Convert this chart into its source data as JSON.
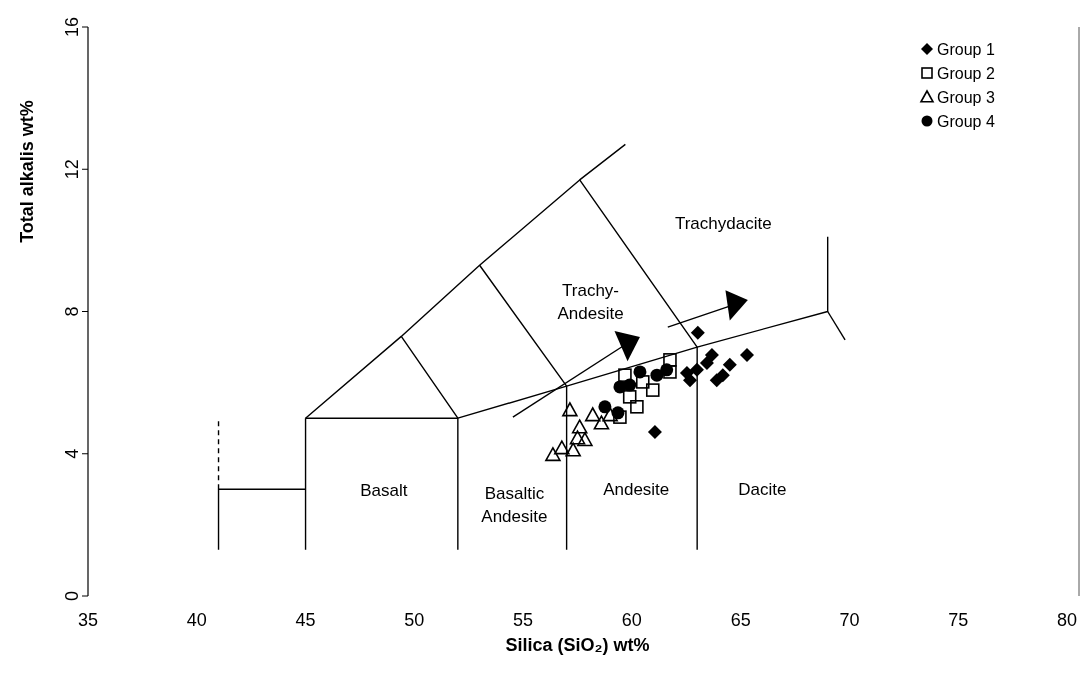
{
  "chart_data": {
    "type": "scatter",
    "xlabel": "Silica (SiO₂) wt%",
    "ylabel": "Total alkalis wt%",
    "xlim": [
      35,
      80
    ],
    "xticks": [
      35,
      40,
      45,
      50,
      55,
      60,
      65,
      70,
      75,
      80
    ],
    "ylim": [
      0,
      16
    ],
    "yticks": [
      0,
      4,
      8,
      12,
      16
    ],
    "grid": false,
    "legend": "top right",
    "series": [
      {
        "name": "Group 1",
        "color": "#000000",
        "marker": "diamond",
        "x": [
          63.03,
          61.06,
          63.68,
          65.29,
          64.5,
          62.67,
          63.9,
          63.45,
          62.53,
          64.18,
          62.99
        ],
        "values": [
          7.4,
          4.61,
          6.78,
          6.78,
          6.5,
          6.07,
          6.07,
          6.55,
          6.27,
          6.21,
          6.36
        ]
      },
      {
        "name": "Group 2",
        "color": "#000000",
        "marker": "square",
        "x": [
          59.68,
          61.75,
          61.75,
          60.96,
          60.23,
          59.45,
          60.5,
          59.9
        ],
        "values": [
          6.21,
          6.64,
          6.3,
          5.79,
          5.32,
          5.03,
          6.02,
          5.6
        ]
      },
      {
        "name": "Group 3",
        "color": "#000000",
        "marker": "triangle",
        "x": [
          57.15,
          56.37,
          56.78,
          57.3,
          57.6,
          57.84,
          58.2,
          58.6,
          57.5,
          59.0
        ],
        "values": [
          5.23,
          3.97,
          4.16,
          4.1,
          4.75,
          4.39,
          5.09,
          4.86,
          4.44,
          5.09
        ]
      },
      {
        "name": "Group 4",
        "color": "#000000",
        "marker": "circle",
        "x": [
          59.45,
          58.76,
          60.37,
          61.15,
          61.6,
          59.36,
          59.9
        ],
        "values": [
          5.88,
          5.32,
          6.3,
          6.21,
          6.36,
          5.15,
          5.93
        ]
      },
      {
        "type": "line",
        "color": "#000000",
        "marker": "none",
        "line_style": "solid",
        "x": [
          45,
          49.4,
          53,
          57.6,
          59.7
        ],
        "values": [
          5,
          7.3,
          9.3,
          11.7,
          12.7
        ]
      },
      {
        "type": "line",
        "color": "#000000",
        "marker": "none",
        "line_style": "solid",
        "x": [
          45,
          52,
          57,
          63,
          69,
          69
        ],
        "values": [
          5,
          5,
          5.9,
          7,
          8,
          10.1
        ]
      },
      {
        "type": "line",
        "color": "#000000",
        "marker": "none",
        "line_style": "solid",
        "x": [
          69,
          69.8
        ],
        "values": [
          8,
          7.2
        ]
      },
      {
        "type": "line",
        "color": "#000000",
        "marker": "none",
        "line_style": "solid",
        "x": [
          49.4,
          52,
          52
        ],
        "values": [
          7.3,
          5,
          1.3
        ]
      },
      {
        "type": "line",
        "color": "#000000",
        "marker": "none",
        "line_style": "solid",
        "x": [
          53,
          57,
          57
        ],
        "values": [
          9.3,
          5.9,
          1.3
        ]
      },
      {
        "type": "line",
        "color": "#000000",
        "marker": "none",
        "line_style": "solid",
        "x": [
          57.6,
          63,
          63
        ],
        "values": [
          11.7,
          7,
          1.3
        ]
      },
      {
        "type": "line",
        "color": "#000000",
        "marker": "none",
        "line_style": "solid",
        "x": [
          45,
          45
        ],
        "values": [
          5,
          1.3
        ]
      },
      {
        "type": "line",
        "color": "#000000",
        "marker": "none",
        "line_style": "solid",
        "x": [
          41,
          41,
          45
        ],
        "values": [
          1.3,
          3,
          3
        ]
      },
      {
        "type": "line",
        "color": "#000000",
        "marker": "none",
        "line_style": "dashed",
        "x": [
          41,
          41
        ],
        "values": [
          3,
          5
        ]
      }
    ],
    "annotations": [
      "Basalt",
      "Basaltic\nAndesite",
      "Andesite",
      "Dacite",
      "Trachydacite",
      "Trachy-\nAndesite"
    ]
  }
}
